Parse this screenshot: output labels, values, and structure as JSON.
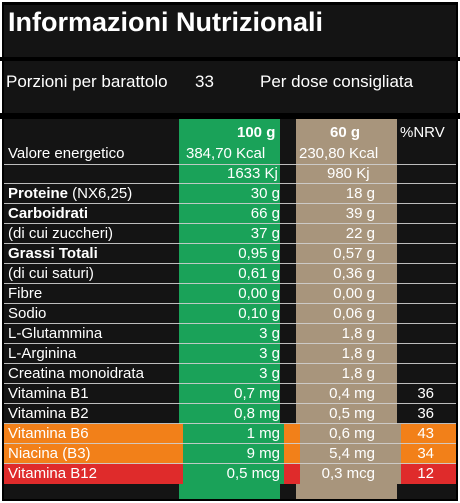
{
  "title": "Informazioni Nutrizionali",
  "servings": {
    "label": "Porzioni per barattolo",
    "count": "33",
    "per_dose": "Per dose consigliata"
  },
  "header": {
    "col_100g": "100 g",
    "col_60g": "60 g",
    "col_nrv": "%NRV"
  },
  "energy": {
    "label": "Valore energetico",
    "kcal_100": "384,70 Kcal",
    "kcal_60": "230,80 Kcal",
    "kj_100": "1633  Kj",
    "kj_60": "980  Kj"
  },
  "rows": [
    {
      "label_bold": "Proteine",
      "label_rest": "  (NX6,25)",
      "v100": "30 g",
      "v60": "18 g",
      "nrv": ""
    },
    {
      "label_bold": "Carboidrati",
      "label_rest": "",
      "v100": "66 g",
      "v60": "39 g",
      "nrv": ""
    },
    {
      "label_bold": "",
      "label_rest": "(di cui zuccheri)",
      "v100": "37 g",
      "v60": "22 g",
      "nrv": ""
    },
    {
      "label_bold": "Grassi Totali",
      "label_rest": "",
      "v100": "0,95 g",
      "v60": "0,57 g",
      "nrv": ""
    },
    {
      "label_bold": "",
      "label_rest": " (di cui saturi)",
      "v100": "0,61 g",
      "v60": "0,36 g",
      "nrv": ""
    },
    {
      "label_bold": "",
      "label_rest": "Fibre",
      "v100": "0,00 g",
      "v60": "0,00 g",
      "nrv": ""
    },
    {
      "label_bold": "",
      "label_rest": "Sodio",
      "v100": "0,10 g",
      "v60": "0,06 g",
      "nrv": ""
    },
    {
      "label_bold": "",
      "label_rest": "L-Glutammina",
      "v100": "3 g",
      "v60": "1,8 g",
      "nrv": ""
    },
    {
      "label_bold": "",
      "label_rest": "L-Arginina",
      "v100": "3 g",
      "v60": "1,8 g",
      "nrv": ""
    },
    {
      "label_bold": "",
      "label_rest": "Creatina monoidrata",
      "v100": "3 g",
      "v60": "1,8 g",
      "nrv": ""
    },
    {
      "label_bold": "",
      "label_rest": "Vitamina B1",
      "v100": "0,7 mg",
      "v60": "0,4 mg",
      "nrv": "36"
    },
    {
      "label_bold": "",
      "label_rest": "Vitamina B2",
      "v100": "0,8 mg",
      "v60": "0,5 mg",
      "nrv": "36"
    },
    {
      "label_bold": "",
      "label_rest": "Vitamina B6",
      "v100": "1 mg",
      "v60": "0,6 mg",
      "nrv": "43"
    },
    {
      "label_bold": "",
      "label_rest": "Niacina  (B3)",
      "v100": "9 mg",
      "v60": "5,4 mg",
      "nrv": "34"
    },
    {
      "label_bold": "",
      "label_rest": "Vitamina B12",
      "v100": "0,5 mcg",
      "v60": "0,3 mcg",
      "nrv": "12"
    }
  ],
  "colors": {
    "green": "#1aa259",
    "tan": "#a8957c",
    "orange": "#f28019",
    "red": "#df2b2b"
  }
}
